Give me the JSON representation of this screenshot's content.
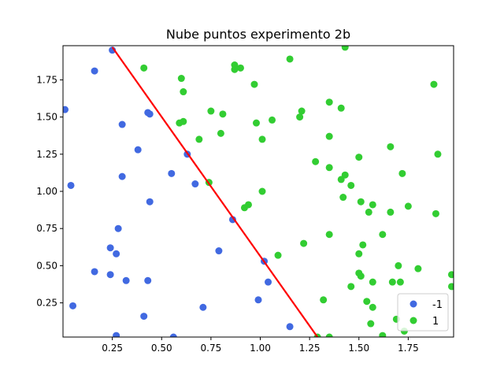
{
  "chart_data": {
    "type": "scatter",
    "title": "Nube puntos experimento 2b",
    "xlabel": "",
    "ylabel": "",
    "xlim": [
      0.0,
      1.98
    ],
    "ylim": [
      0.02,
      1.98
    ],
    "xticks": [
      0.25,
      0.5,
      0.75,
      1.0,
      1.25,
      1.5,
      1.75
    ],
    "xtick_labels": [
      "0.25",
      "0.50",
      "0.75",
      "1.00",
      "1.25",
      "1.50",
      "1.75"
    ],
    "yticks": [
      0.25,
      0.5,
      0.75,
      1.0,
      1.25,
      1.5,
      1.75
    ],
    "ytick_labels": [
      "0.25",
      "0.50",
      "0.75",
      "1.00",
      "1.25",
      "1.50",
      "1.75"
    ],
    "grid": false,
    "legend_position": "bottom-right",
    "series": [
      {
        "name": "-1",
        "color": "#4169e1",
        "points": [
          [
            0.25,
            1.95
          ],
          [
            0.16,
            1.81
          ],
          [
            0.01,
            1.55
          ],
          [
            0.3,
            1.45
          ],
          [
            0.43,
            1.53
          ],
          [
            0.44,
            1.52
          ],
          [
            0.38,
            1.28
          ],
          [
            0.63,
            1.25
          ],
          [
            0.55,
            1.12
          ],
          [
            0.3,
            1.1
          ],
          [
            0.04,
            1.04
          ],
          [
            0.67,
            1.05
          ],
          [
            0.44,
            0.93
          ],
          [
            0.86,
            0.81
          ],
          [
            0.28,
            0.75
          ],
          [
            0.24,
            0.62
          ],
          [
            0.27,
            0.58
          ],
          [
            0.79,
            0.6
          ],
          [
            1.02,
            0.53
          ],
          [
            0.16,
            0.46
          ],
          [
            0.24,
            0.44
          ],
          [
            0.32,
            0.4
          ],
          [
            0.43,
            0.4
          ],
          [
            1.04,
            0.39
          ],
          [
            0.99,
            0.27
          ],
          [
            0.05,
            0.23
          ],
          [
            0.71,
            0.22
          ],
          [
            0.41,
            0.16
          ],
          [
            1.15,
            0.09
          ],
          [
            0.27,
            0.03
          ],
          [
            0.56,
            0.02
          ]
        ]
      },
      {
        "name": "1",
        "color": "#32cd32",
        "points": [
          [
            1.43,
            1.97
          ],
          [
            0.41,
            1.83
          ],
          [
            0.87,
            1.85
          ],
          [
            0.87,
            1.82
          ],
          [
            0.9,
            1.83
          ],
          [
            1.15,
            1.89
          ],
          [
            0.6,
            1.76
          ],
          [
            0.97,
            1.72
          ],
          [
            1.88,
            1.72
          ],
          [
            0.61,
            1.67
          ],
          [
            0.75,
            1.54
          ],
          [
            0.81,
            1.52
          ],
          [
            1.21,
            1.54
          ],
          [
            1.2,
            1.5
          ],
          [
            1.35,
            1.6
          ],
          [
            1.41,
            1.56
          ],
          [
            0.59,
            1.46
          ],
          [
            0.61,
            1.47
          ],
          [
            0.98,
            1.46
          ],
          [
            1.06,
            1.48
          ],
          [
            0.8,
            1.39
          ],
          [
            1.35,
            1.37
          ],
          [
            0.69,
            1.35
          ],
          [
            1.01,
            1.35
          ],
          [
            1.66,
            1.3
          ],
          [
            1.9,
            1.25
          ],
          [
            1.5,
            1.23
          ],
          [
            1.28,
            1.2
          ],
          [
            1.35,
            1.16
          ],
          [
            1.72,
            1.12
          ],
          [
            1.43,
            1.11
          ],
          [
            1.41,
            1.08
          ],
          [
            1.46,
            1.04
          ],
          [
            0.74,
            1.06
          ],
          [
            1.01,
            1.0
          ],
          [
            1.42,
            0.96
          ],
          [
            0.94,
            0.91
          ],
          [
            0.92,
            0.89
          ],
          [
            1.51,
            0.93
          ],
          [
            1.57,
            0.91
          ],
          [
            1.75,
            0.9
          ],
          [
            1.55,
            0.86
          ],
          [
            1.66,
            0.86
          ],
          [
            1.89,
            0.85
          ],
          [
            1.35,
            0.71
          ],
          [
            1.62,
            0.71
          ],
          [
            1.22,
            0.65
          ],
          [
            1.52,
            0.64
          ],
          [
            1.09,
            0.57
          ],
          [
            1.5,
            0.58
          ],
          [
            1.7,
            0.5
          ],
          [
            1.8,
            0.48
          ],
          [
            1.5,
            0.45
          ],
          [
            1.51,
            0.43
          ],
          [
            1.97,
            0.44
          ],
          [
            1.57,
            0.39
          ],
          [
            1.67,
            0.39
          ],
          [
            1.71,
            0.39
          ],
          [
            1.46,
            0.36
          ],
          [
            1.97,
            0.36
          ],
          [
            1.54,
            0.26
          ],
          [
            1.32,
            0.27
          ],
          [
            1.57,
            0.22
          ],
          [
            1.69,
            0.14
          ],
          [
            1.56,
            0.11
          ],
          [
            1.73,
            0.06
          ],
          [
            1.29,
            0.02
          ],
          [
            1.35,
            0.02
          ],
          [
            1.62,
            0.03
          ]
        ]
      }
    ],
    "lines": [
      {
        "color": "#ff0000",
        "points": [
          [
            0.25,
            1.97
          ],
          [
            1.29,
            0.02
          ]
        ]
      }
    ]
  }
}
